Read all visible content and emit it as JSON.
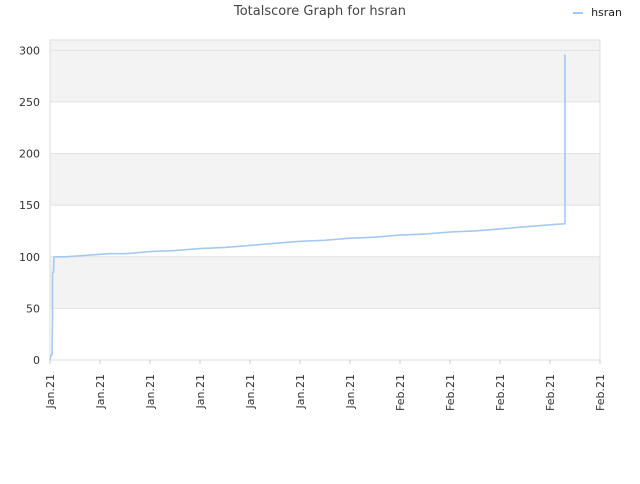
{
  "chart_data": {
    "type": "line",
    "title": "Totalscore Graph for hsran",
    "xlabel": "",
    "ylabel": "",
    "ylim": [
      0,
      310
    ],
    "yticks": [
      0,
      50,
      100,
      150,
      200,
      250,
      300
    ],
    "xticks": [
      "Jan.21",
      "Jan.21",
      "Jan.21",
      "Jan.21",
      "Jan.21",
      "Jan.21",
      "Jan.21",
      "Feb.21",
      "Feb.21",
      "Feb.21",
      "Feb.21",
      "Feb.21"
    ],
    "grid": true,
    "legend_position": "top-right",
    "series": [
      {
        "name": "hsran",
        "color": "#a5c8f0",
        "x": [
          0,
          0.02,
          0.04,
          0.05,
          0.05,
          0.07,
          0.08,
          0.08,
          0.1,
          0.3,
          0.6,
          0.9,
          1.2,
          1.5,
          2.0,
          2.5,
          3.0,
          3.5,
          4.0,
          4.5,
          5.0,
          5.5,
          6.0,
          6.5,
          7.0,
          7.5,
          8.0,
          8.5,
          9.0,
          9.5,
          10.0,
          10.3,
          10.3,
          10.3
        ],
        "y": [
          0,
          5,
          5,
          40,
          85,
          85,
          99,
          100,
          100,
          100,
          101,
          102,
          103,
          103,
          105,
          106,
          108,
          109,
          111,
          113,
          115,
          116,
          118,
          119,
          121,
          122,
          124,
          125,
          127,
          129,
          131,
          132,
          133,
          296
        ]
      }
    ]
  }
}
